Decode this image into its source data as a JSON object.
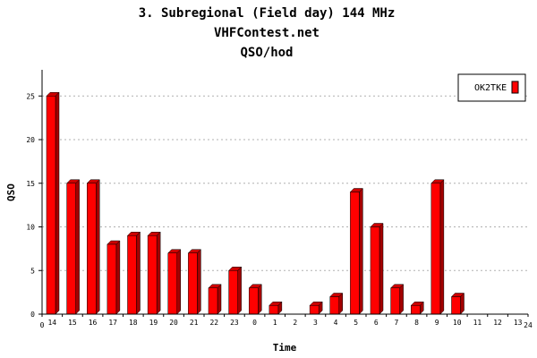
{
  "chart_data": {
    "type": "bar",
    "title": "3. Subregional (Field day) 144 MHz",
    "subtitle": "VHFContest.net",
    "subtitle2": "QSO/hod",
    "xlabel": "Time",
    "ylabel": "QSO",
    "x_edge_labels": [
      "0",
      "24"
    ],
    "categories": [
      "14",
      "15",
      "16",
      "17",
      "18",
      "19",
      "20",
      "21",
      "22",
      "23",
      "0",
      "1",
      "2",
      "3",
      "4",
      "5",
      "6",
      "7",
      "8",
      "9",
      "10",
      "11",
      "12",
      "13"
    ],
    "series": [
      {
        "name": "OK2TKE",
        "values": [
          25,
          15,
          15,
          8,
          9,
          9,
          7,
          7,
          3,
          5,
          3,
          1,
          0,
          1,
          2,
          14,
          10,
          3,
          1,
          15,
          2,
          0,
          0,
          0
        ]
      }
    ],
    "ylim": [
      0,
      28
    ],
    "yticks": [
      0,
      5,
      10,
      15,
      20,
      25
    ],
    "grid": true,
    "legend_position": "top-right",
    "colors": {
      "bar_front": "#ff0000",
      "bar_side": "#a30000",
      "bar_top": "#cc0000",
      "grid": "#b0b0b0"
    }
  }
}
